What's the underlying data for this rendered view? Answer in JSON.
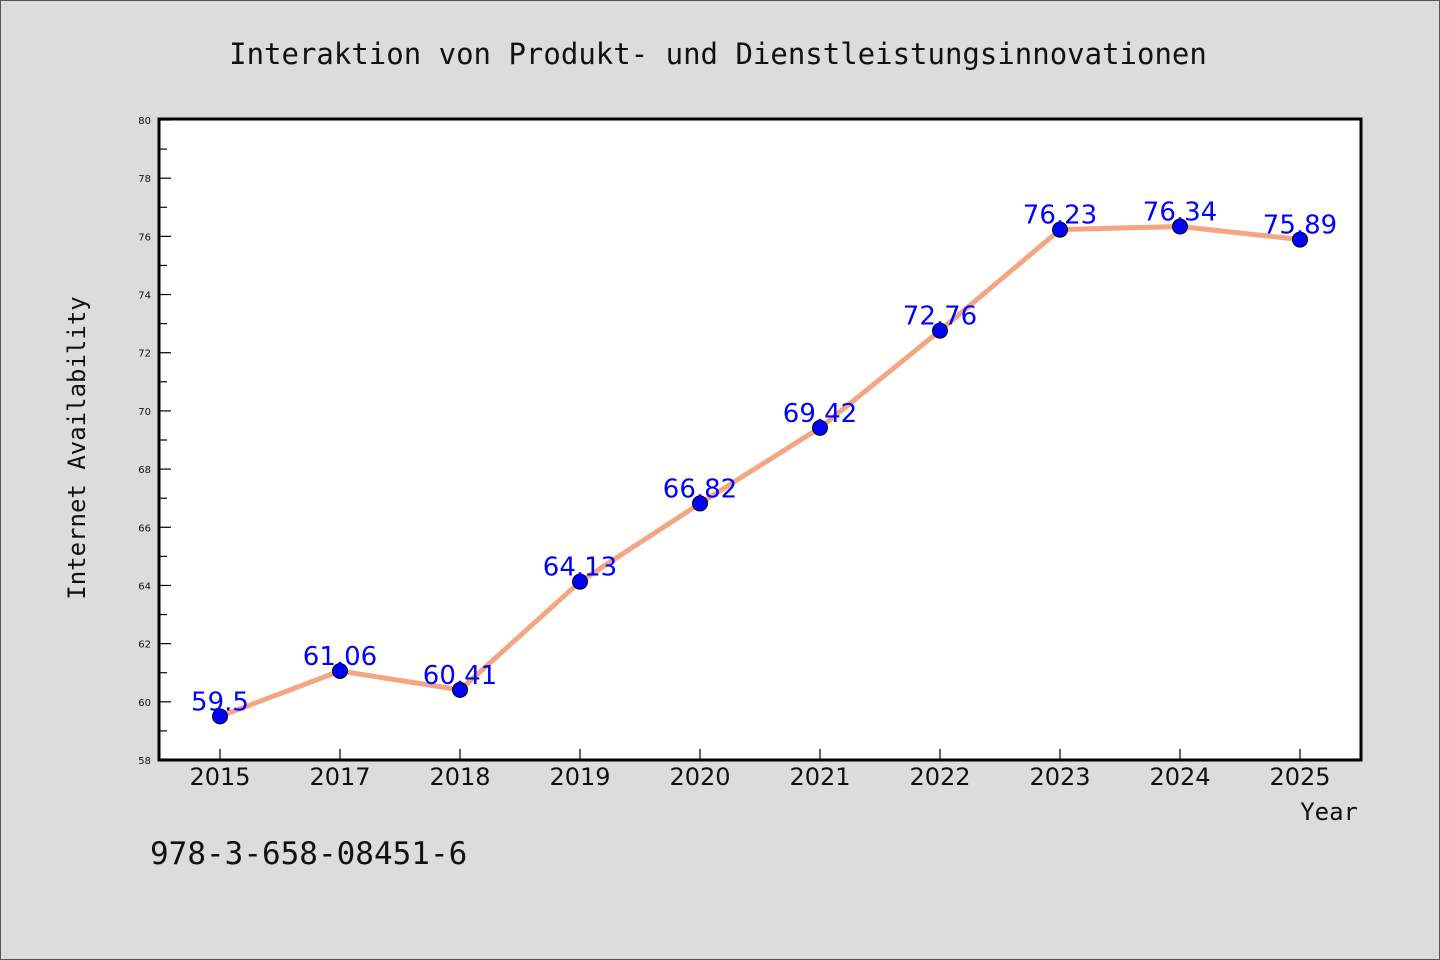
{
  "chart_data": {
    "type": "line",
    "title": "Interaktion von Produkt- und Dienstleistungsinnovationen",
    "xlabel": "Year",
    "ylabel": "Internet Availability",
    "categories": [
      "2015",
      "2017",
      "2018",
      "2019",
      "2020",
      "2021",
      "2022",
      "2023",
      "2024",
      "2025"
    ],
    "values": [
      59.5,
      61.06,
      60.41,
      64.13,
      66.82,
      69.42,
      72.76,
      76.23,
      76.34,
      75.89
    ],
    "data_labels": [
      "59.5",
      "61.06",
      "60.41",
      "64.13",
      "66.82",
      "69.42",
      "72.76",
      "76.23",
      "76.34",
      "75.89"
    ],
    "ylim": [
      58,
      80
    ],
    "yticks": [
      "58",
      "60",
      "62",
      "64",
      "66",
      "68",
      "70",
      "72",
      "74",
      "76",
      "78",
      "80"
    ],
    "grid": false,
    "legend": "none",
    "colors": {
      "line": "#f4a582",
      "marker": "#0000ff",
      "data_label": "#0000ff",
      "background": "#dcdcdc",
      "plot_background": "#ffffff"
    }
  },
  "footnote": "978-3-658-08451-6"
}
